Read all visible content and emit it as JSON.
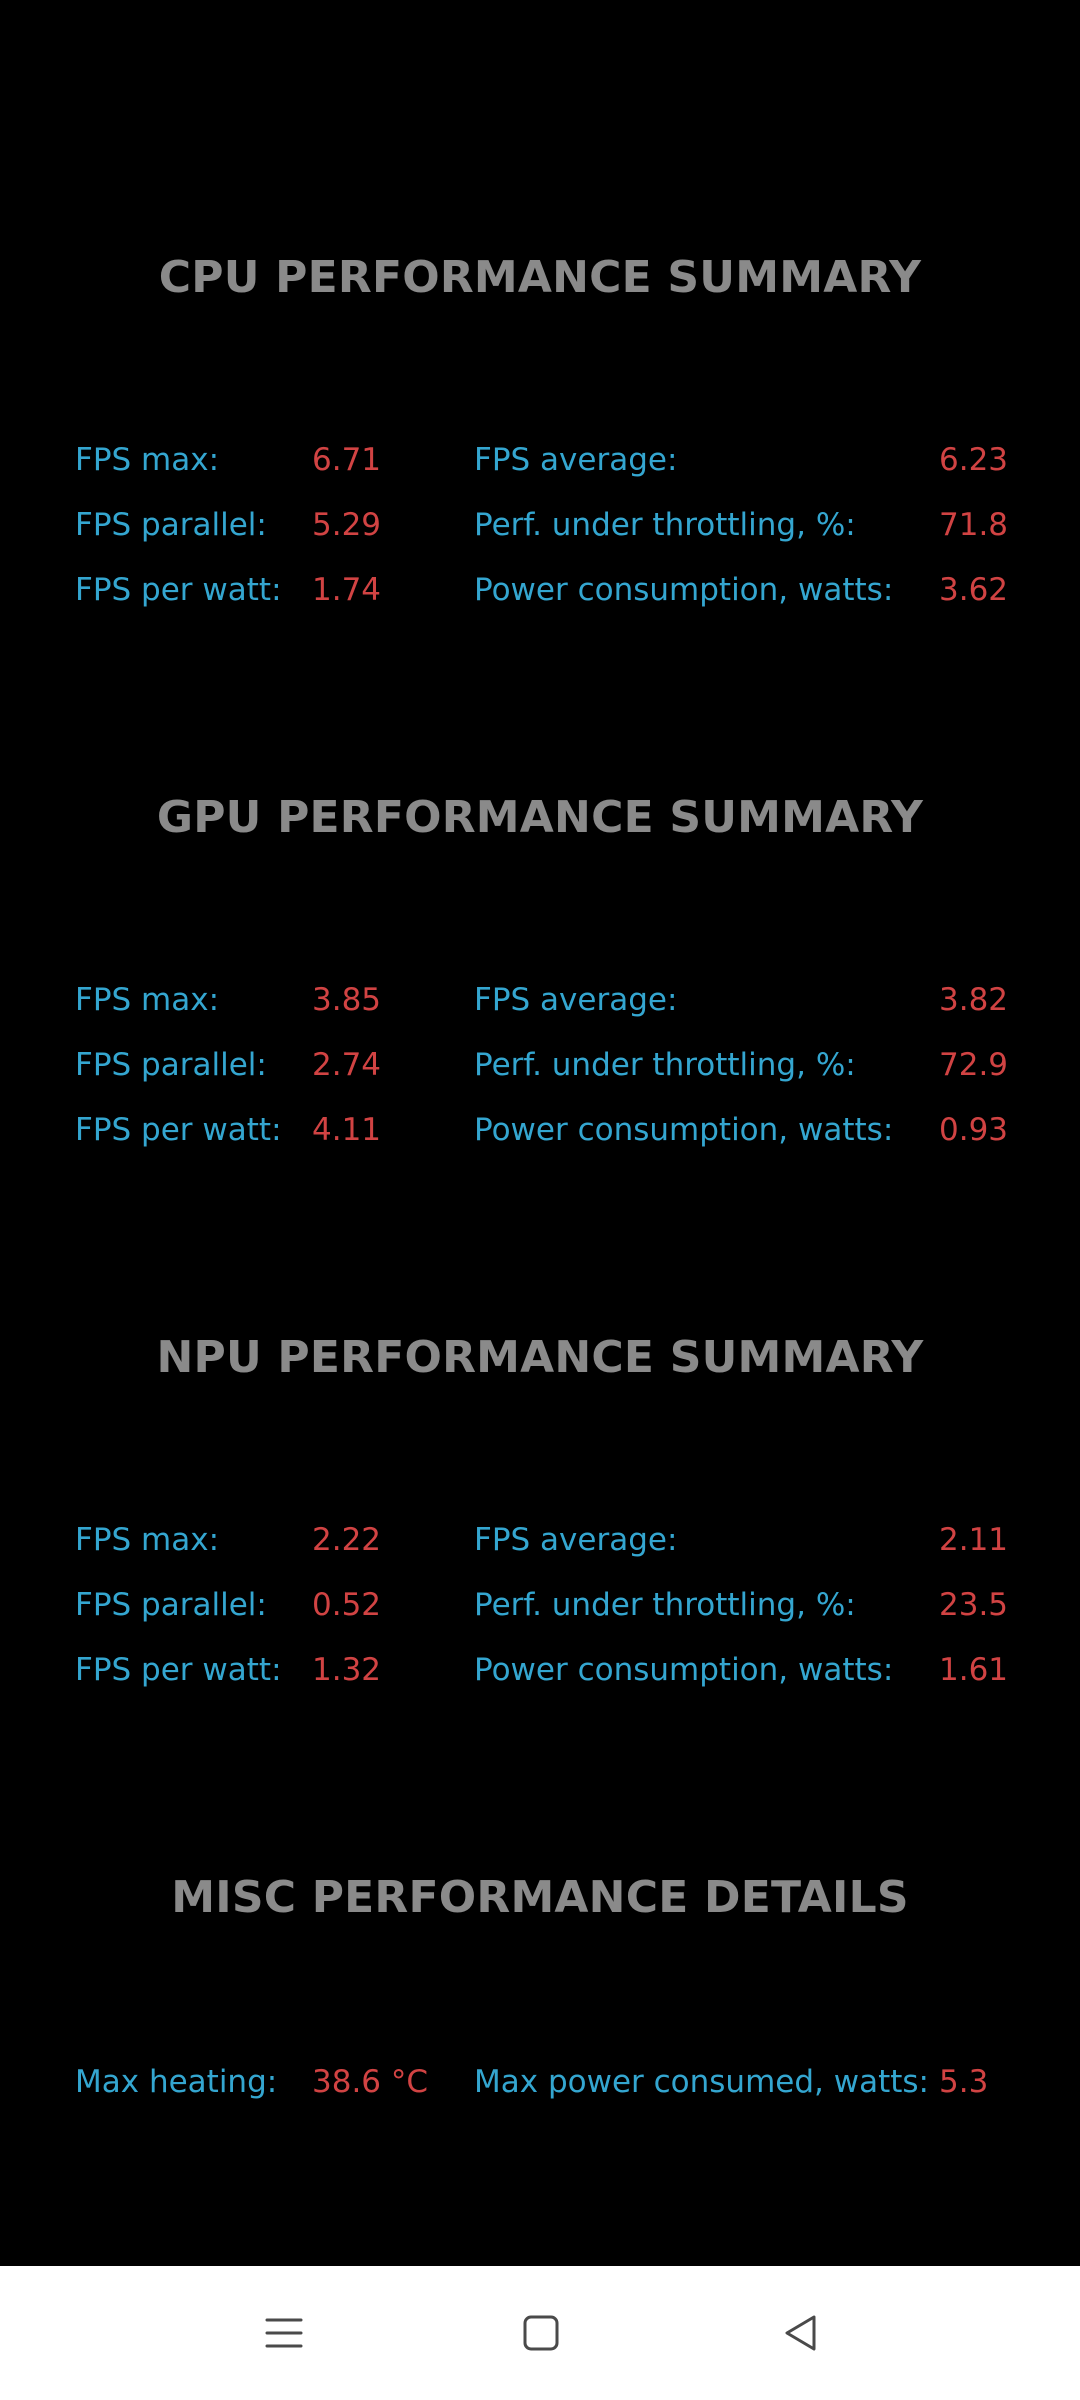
{
  "sections": [
    {
      "title": "CPU PERFORMANCE SUMMARY",
      "rows": [
        {
          "label1": "FPS max:",
          "value1": "6.71",
          "label2": "FPS average:",
          "value2": "6.23"
        },
        {
          "label1": "FPS parallel:",
          "value1": "5.29",
          "label2": "Perf. under throttling, %:",
          "value2": "71.8"
        },
        {
          "label1": "FPS per watt:",
          "value1": "1.74",
          "label2": "Power consumption, watts:",
          "value2": "3.62"
        }
      ]
    },
    {
      "title": "GPU PERFORMANCE SUMMARY",
      "rows": [
        {
          "label1": "FPS max:",
          "value1": "3.85",
          "label2": "FPS average:",
          "value2": "3.82"
        },
        {
          "label1": "FPS parallel:",
          "value1": "2.74",
          "label2": "Perf. under throttling, %:",
          "value2": "72.9"
        },
        {
          "label1": "FPS per watt:",
          "value1": "4.11",
          "label2": "Power consumption, watts:",
          "value2": "0.93"
        }
      ]
    },
    {
      "title": "NPU PERFORMANCE SUMMARY",
      "rows": [
        {
          "label1": "FPS max:",
          "value1": "2.22",
          "label2": "FPS average:",
          "value2": "2.11"
        },
        {
          "label1": "FPS parallel:",
          "value1": "0.52",
          "label2": "Perf. under throttling, %:",
          "value2": "23.5"
        },
        {
          "label1": "FPS per watt:",
          "value1": "1.32",
          "label2": "Power consumption, watts:",
          "value2": "1.61"
        }
      ]
    },
    {
      "title": "MISC PERFORMANCE DETAILS",
      "rows": [
        {
          "label1": "Max heating:",
          "value1": "38.6 °C",
          "label2": "Max power consumed, watts:",
          "value2": "5.3"
        }
      ]
    }
  ],
  "navbar": {
    "icons": [
      "menu-icon",
      "home-square-icon",
      "back-triangle-icon"
    ]
  },
  "colors": {
    "background": "#000000",
    "title": "#8a8a8a",
    "label": "#34a6d0",
    "value": "#d14343",
    "navbar": "#ffffff",
    "nav_icon": "#4a4a4a"
  }
}
